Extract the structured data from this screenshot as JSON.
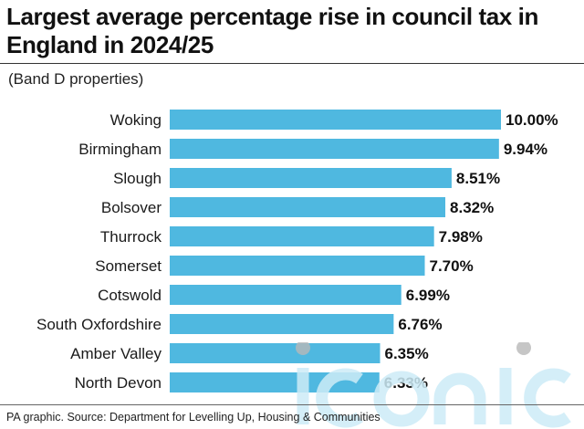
{
  "title": "Largest average percentage rise in council tax in England in 2024/25",
  "subtitle": "(Band D properties)",
  "source": "PA graphic. Source: Department for Levelling Up, Housing & Communities",
  "watermark": "iconic",
  "colors": {
    "bar": "#4fb8e0",
    "label": "#1a1a1a",
    "value": "#111111",
    "watermark": "#cdecf7"
  },
  "chart_data": {
    "type": "bar",
    "orientation": "horizontal",
    "categories": [
      "Woking",
      "Birmingham",
      "Slough",
      "Bolsover",
      "Thurrock",
      "Somerset",
      "Cotswold",
      "South Oxfordshire",
      "Amber Valley",
      "North Devon"
    ],
    "values": [
      10.0,
      9.94,
      8.51,
      8.32,
      7.98,
      7.7,
      6.99,
      6.76,
      6.35,
      6.33
    ],
    "value_labels": [
      "10.00%",
      "9.94%",
      "8.51%",
      "8.32%",
      "7.98%",
      "7.70%",
      "6.99%",
      "6.76%",
      "6.35%",
      "6.33%"
    ],
    "xlim": [
      0,
      10
    ],
    "grid": false,
    "legend": "none"
  }
}
